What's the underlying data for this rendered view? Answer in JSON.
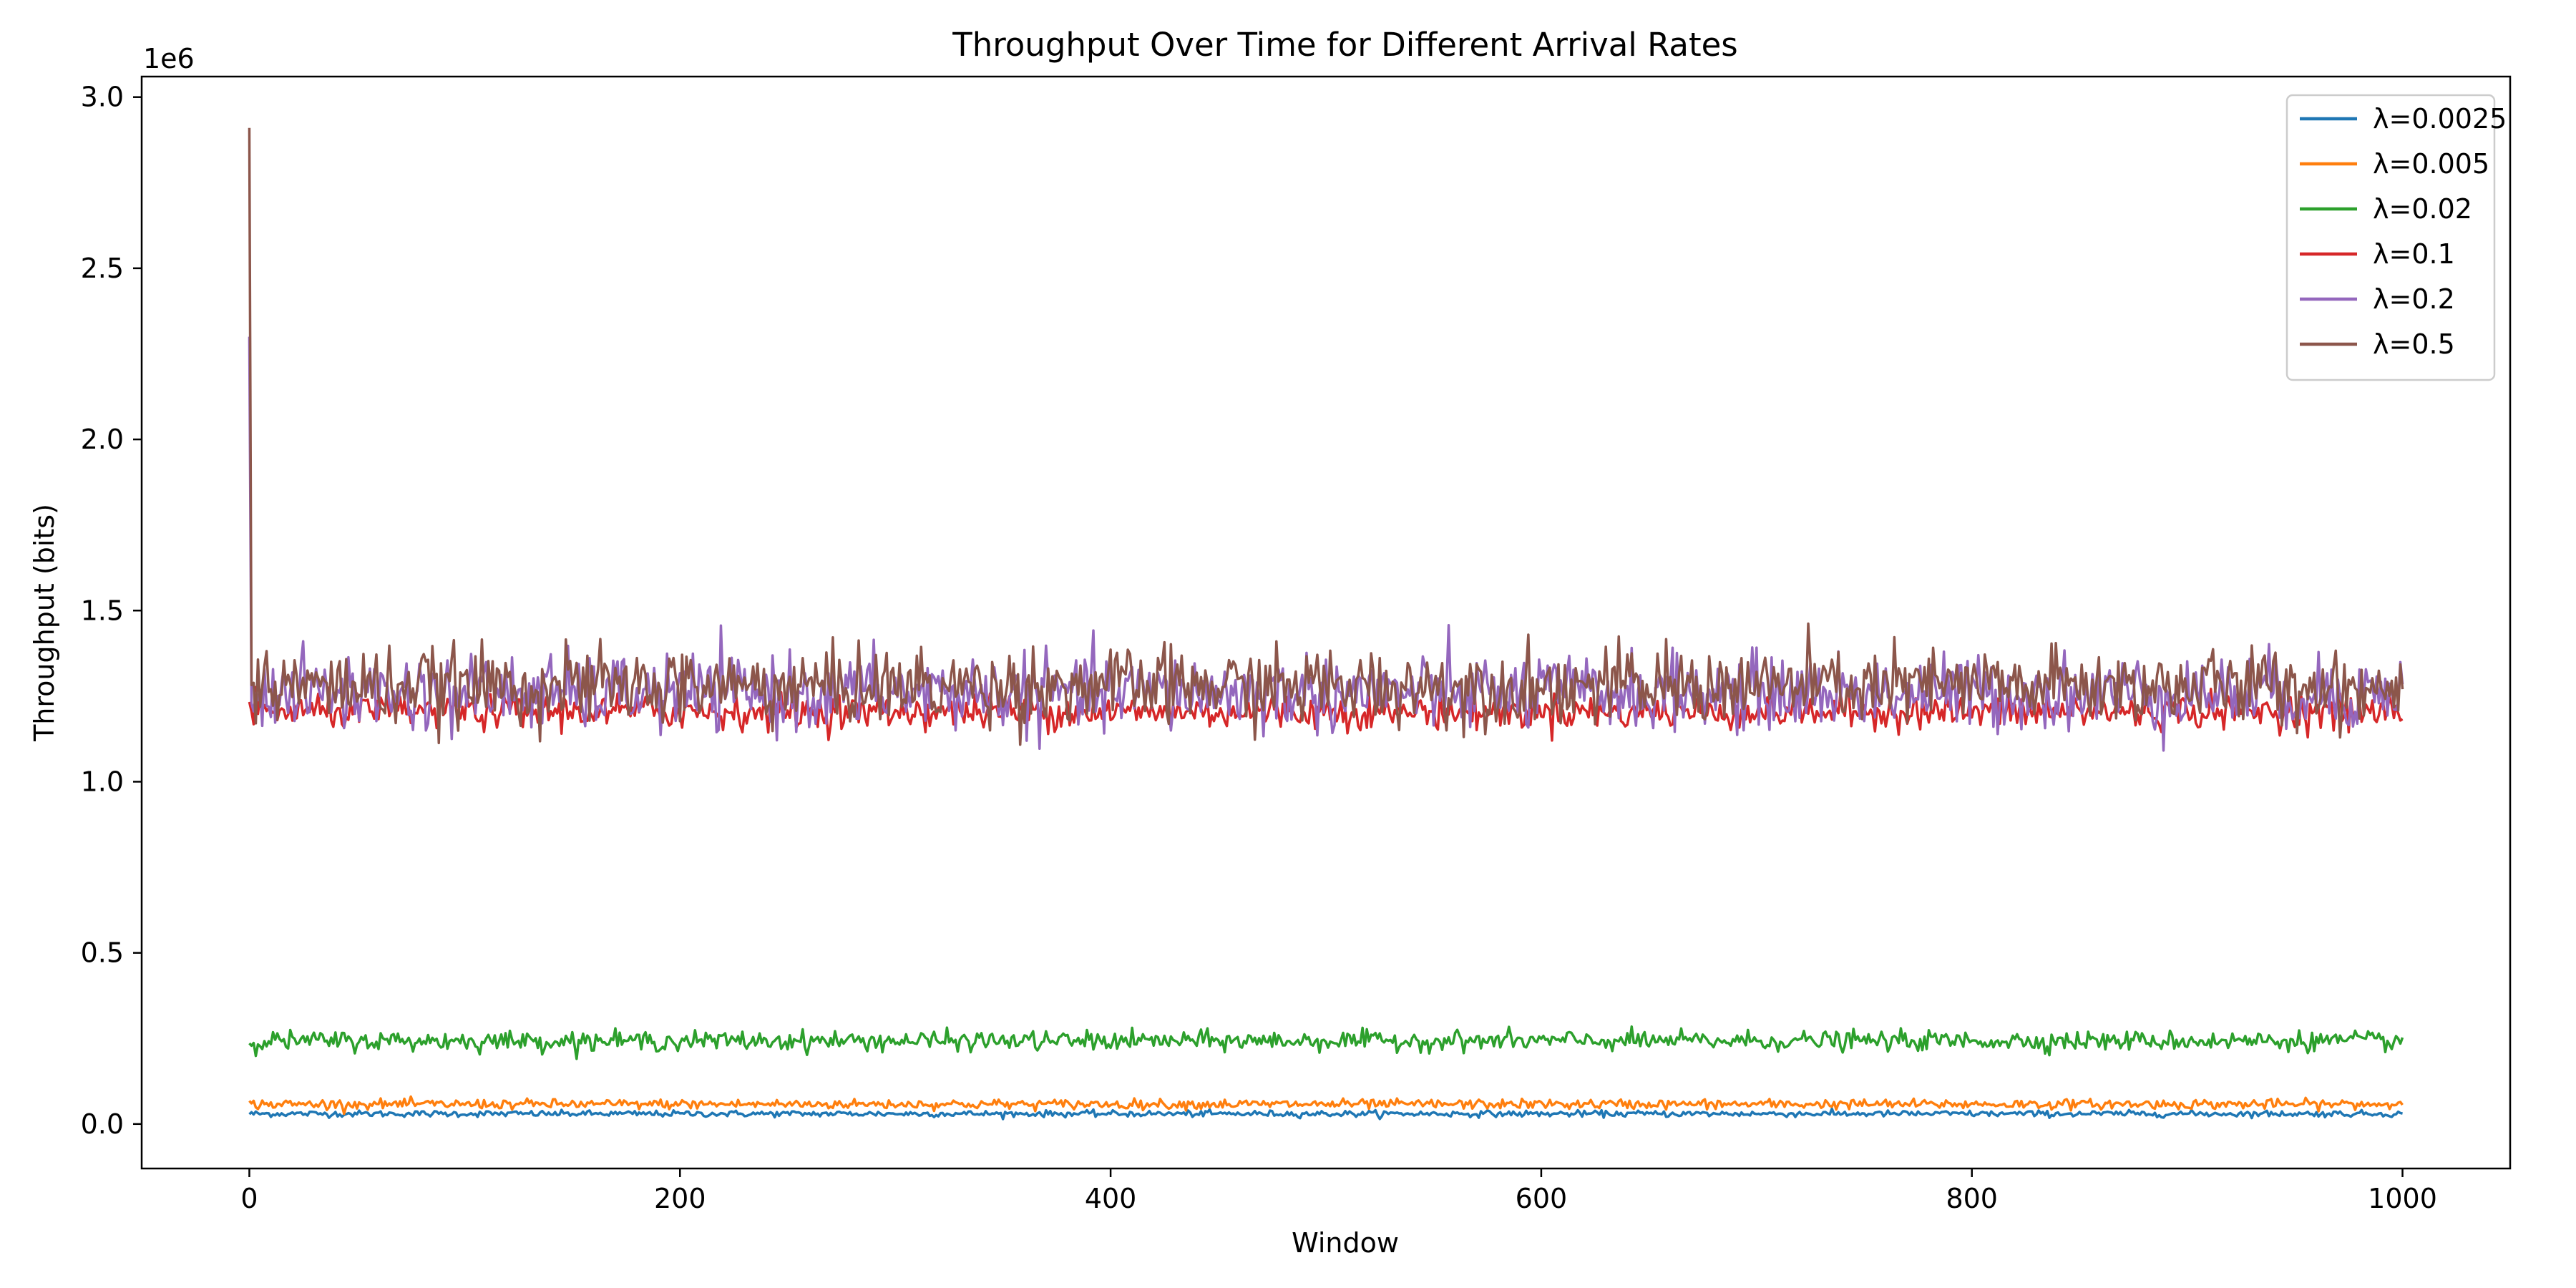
{
  "chart_data": {
    "type": "line",
    "title": "Throughput Over Time for Different Arrival Rates",
    "xlabel": "Window",
    "ylabel": "Throughput (bits)",
    "y_offset_label": "1e6",
    "xlim": [
      -50,
      1050
    ],
    "ylim": [
      -0.13,
      3.06
    ],
    "y_scale": 1000000,
    "xticks": [
      0,
      200,
      400,
      600,
      800,
      1000
    ],
    "xtick_labels": [
      "0",
      "200",
      "400",
      "600",
      "800",
      "1000"
    ],
    "yticks": [
      0.0,
      0.5,
      1.0,
      1.5,
      2.0,
      2.5,
      3.0
    ],
    "ytick_labels": [
      "0.0",
      "0.5",
      "1.0",
      "1.5",
      "2.0",
      "2.5",
      "3.0"
    ],
    "grid": false,
    "legend_position": "top-right",
    "x_range": [
      0,
      1000
    ],
    "series": [
      {
        "name": "λ=0.0025",
        "color": "#1f77b4",
        "mean": 30000,
        "noise": 4500,
        "start_spike": null
      },
      {
        "name": "λ=0.005",
        "color": "#ff7f0e",
        "mean": 58000,
        "noise": 7000,
        "start_spike": null
      },
      {
        "name": "λ=0.02",
        "color": "#2ca02c",
        "mean": 243000,
        "noise": 14000,
        "start_spike": null
      },
      {
        "name": "λ=0.1",
        "color": "#d62728",
        "mean": 1205000,
        "noise": 25000,
        "start_spike": null
      },
      {
        "name": "λ=0.2",
        "color": "#9467bd",
        "mean": 1260000,
        "noise": 55000,
        "start_spike": 2300000
      },
      {
        "name": "λ=0.5",
        "color": "#8c564b",
        "mean": 1280000,
        "noise": 55000,
        "start_spike": 2910000
      }
    ]
  }
}
